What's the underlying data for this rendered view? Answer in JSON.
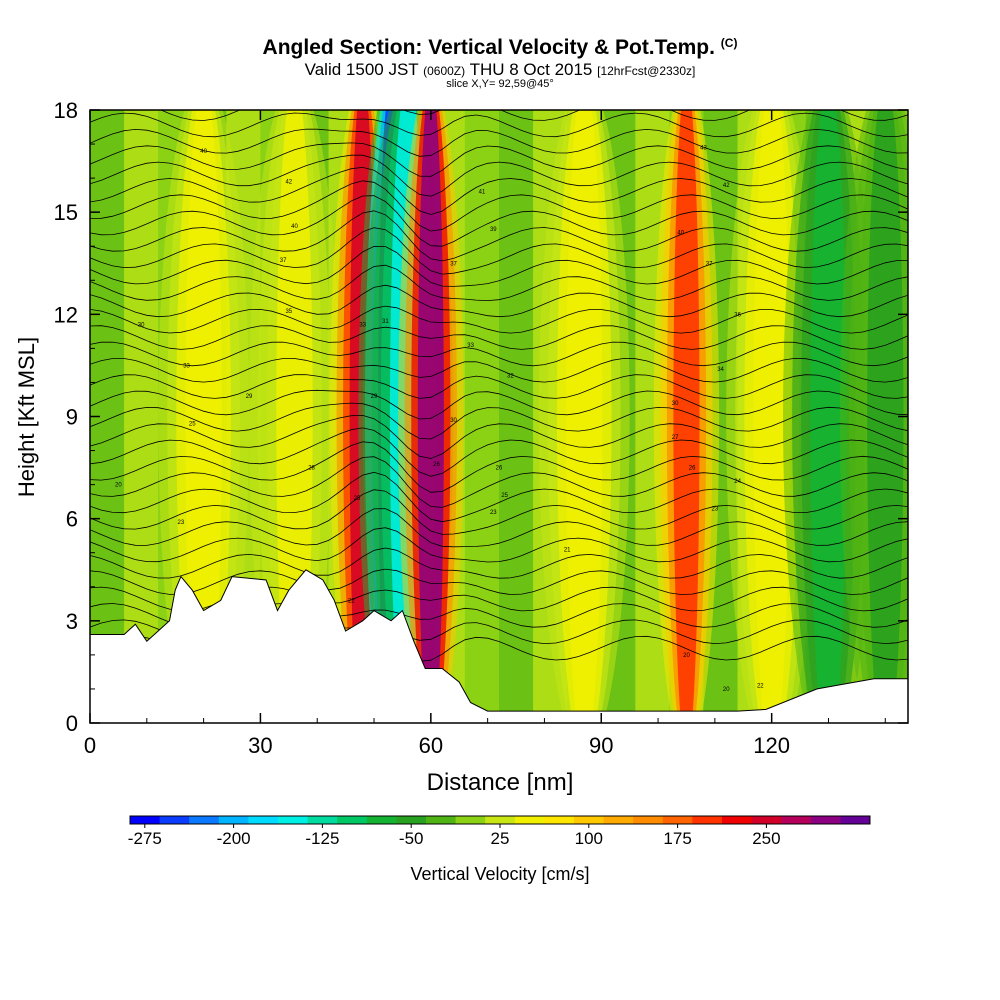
{
  "title": {
    "main": "Angled Section: Vertical Velocity & Pot.Temp.",
    "unit_mark": "(C)",
    "valid_a": "Valid 1500 JST",
    "valid_z": "(0600Z)",
    "valid_b": "THU 8 Oct 2015",
    "fcst": "[12hrFcst@2330z]",
    "slice": "slice X,Y= 92,59@45°"
  },
  "chart_data": {
    "type": "heatmap",
    "xlabel": "Distance [nm]",
    "ylabel": "Height [Kft MSL]",
    "xlim": [
      0,
      144
    ],
    "ylim": [
      0,
      18
    ],
    "x_ticks": [
      "0",
      "30",
      "60",
      "90",
      "120"
    ],
    "y_ticks": [
      "0",
      "3",
      "6",
      "9",
      "12",
      "15",
      "18"
    ],
    "colorbar": {
      "label": "Vertical Velocity [cm/s]",
      "tick_labels": [
        "-275",
        "-200",
        "-125",
        "-50",
        "25",
        "100",
        "175",
        "250"
      ],
      "colors": [
        "#0000ff",
        "#0a3cff",
        "#0a78ff",
        "#00b4ff",
        "#00dcff",
        "#00f0e6",
        "#00dca0",
        "#00c864",
        "#14b432",
        "#28a020",
        "#50b414",
        "#8cd214",
        "#c8e614",
        "#f0f000",
        "#ffe600",
        "#ffc800",
        "#ffaa00",
        "#ff8c00",
        "#ff6400",
        "#ff3200",
        "#f00000",
        "#d20028",
        "#b4005a",
        "#8c0082",
        "#640096"
      ]
    },
    "velocity_features": [
      {
        "x": 20,
        "value": 60
      },
      {
        "x": 36,
        "value": 45
      },
      {
        "x": 48,
        "value": 250
      },
      {
        "x": 53,
        "value": -250
      },
      {
        "x": 56,
        "value": -140
      },
      {
        "x": 60,
        "value": 290
      },
      {
        "x": 87,
        "value": 60
      },
      {
        "x": 105,
        "value": 200
      },
      {
        "x": 120,
        "value": 60
      },
      {
        "x": 130,
        "value": -70
      },
      {
        "x": 140,
        "value": -40
      }
    ],
    "terrain_height": [
      {
        "x": 0,
        "h": 2.6
      },
      {
        "x": 6,
        "h": 2.6
      },
      {
        "x": 8,
        "h": 2.9
      },
      {
        "x": 10,
        "h": 2.4
      },
      {
        "x": 12,
        "h": 2.7
      },
      {
        "x": 14,
        "h": 3.0
      },
      {
        "x": 15,
        "h": 3.9
      },
      {
        "x": 16,
        "h": 4.3
      },
      {
        "x": 18,
        "h": 3.9
      },
      {
        "x": 20,
        "h": 3.3
      },
      {
        "x": 23,
        "h": 3.6
      },
      {
        "x": 25,
        "h": 4.3
      },
      {
        "x": 31,
        "h": 4.2
      },
      {
        "x": 33,
        "h": 3.3
      },
      {
        "x": 35,
        "h": 3.9
      },
      {
        "x": 38,
        "h": 4.5
      },
      {
        "x": 41,
        "h": 4.2
      },
      {
        "x": 43,
        "h": 3.6
      },
      {
        "x": 45,
        "h": 2.7
      },
      {
        "x": 48,
        "h": 3.0
      },
      {
        "x": 50,
        "h": 3.3
      },
      {
        "x": 53,
        "h": 3.0
      },
      {
        "x": 55,
        "h": 3.3
      },
      {
        "x": 57,
        "h": 2.4
      },
      {
        "x": 59,
        "h": 1.6
      },
      {
        "x": 62,
        "h": 1.6
      },
      {
        "x": 65,
        "h": 1.2
      },
      {
        "x": 67,
        "h": 0.6
      },
      {
        "x": 70,
        "h": 0.35
      },
      {
        "x": 114,
        "h": 0.35
      },
      {
        "x": 119,
        "h": 0.4
      },
      {
        "x": 128,
        "h": 1.0
      },
      {
        "x": 138,
        "h": 1.3
      },
      {
        "x": 144,
        "h": 1.3
      }
    ],
    "contour_labels": [
      {
        "x": 5,
        "y": 7.0,
        "text": "20"
      },
      {
        "x": 16,
        "y": 5.9,
        "text": "23"
      },
      {
        "x": 18,
        "y": 8.8,
        "text": "25"
      },
      {
        "x": 9,
        "y": 11.7,
        "text": "30"
      },
      {
        "x": 17,
        "y": 10.5,
        "text": "33"
      },
      {
        "x": 28,
        "y": 9.6,
        "text": "29"
      },
      {
        "x": 39,
        "y": 7.5,
        "text": "28"
      },
      {
        "x": 47,
        "y": 6.6,
        "text": "25"
      },
      {
        "x": 46,
        "y": 3.6,
        "text": "22"
      },
      {
        "x": 20,
        "y": 16.8,
        "text": "40"
      },
      {
        "x": 35,
        "y": 15.9,
        "text": "42"
      },
      {
        "x": 36,
        "y": 14.6,
        "text": "40"
      },
      {
        "x": 34,
        "y": 13.6,
        "text": "37"
      },
      {
        "x": 35,
        "y": 12.1,
        "text": "35"
      },
      {
        "x": 48,
        "y": 11.7,
        "text": "33"
      },
      {
        "x": 52,
        "y": 11.8,
        "text": "31"
      },
      {
        "x": 50,
        "y": 9.6,
        "text": "29"
      },
      {
        "x": 61,
        "y": 7.6,
        "text": "26"
      },
      {
        "x": 64,
        "y": 8.9,
        "text": "30"
      },
      {
        "x": 67,
        "y": 11.1,
        "text": "33"
      },
      {
        "x": 74,
        "y": 10.2,
        "text": "32"
      },
      {
        "x": 72,
        "y": 7.5,
        "text": "26"
      },
      {
        "x": 73,
        "y": 6.7,
        "text": "25"
      },
      {
        "x": 71,
        "y": 6.2,
        "text": "23"
      },
      {
        "x": 84,
        "y": 5.1,
        "text": "21"
      },
      {
        "x": 69,
        "y": 15.6,
        "text": "41"
      },
      {
        "x": 71,
        "y": 14.5,
        "text": "39"
      },
      {
        "x": 64,
        "y": 13.5,
        "text": "37"
      },
      {
        "x": 108,
        "y": 16.9,
        "text": "43"
      },
      {
        "x": 112,
        "y": 15.8,
        "text": "42"
      },
      {
        "x": 104,
        "y": 14.4,
        "text": "40"
      },
      {
        "x": 109,
        "y": 13.5,
        "text": "37"
      },
      {
        "x": 114,
        "y": 12.0,
        "text": "36"
      },
      {
        "x": 111,
        "y": 10.4,
        "text": "34"
      },
      {
        "x": 103,
        "y": 9.4,
        "text": "30"
      },
      {
        "x": 103,
        "y": 8.4,
        "text": "27"
      },
      {
        "x": 106,
        "y": 7.5,
        "text": "26"
      },
      {
        "x": 114,
        "y": 7.1,
        "text": "24"
      },
      {
        "x": 110,
        "y": 6.3,
        "text": "23"
      },
      {
        "x": 105,
        "y": 2.0,
        "text": "20"
      },
      {
        "x": 112,
        "y": 1.0,
        "text": "20"
      },
      {
        "x": 118,
        "y": 1.1,
        "text": "22"
      }
    ]
  }
}
